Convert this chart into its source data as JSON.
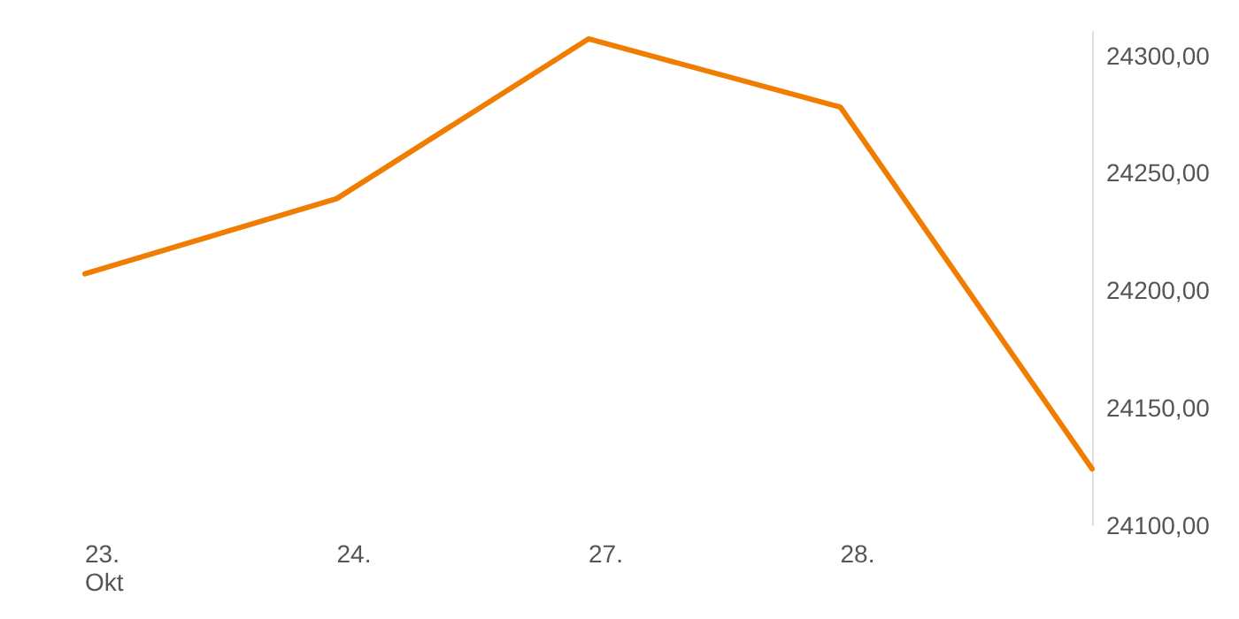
{
  "chart_data": {
    "type": "line",
    "categories": [
      "23.\nOkt",
      "24.",
      "27.",
      "28.",
      null
    ],
    "series": [
      {
        "color": "#f07d00",
        "values": [
          24207,
          24239,
          24307,
          24278,
          24124
        ]
      }
    ],
    "ylim": [
      24100,
      24310
    ],
    "yticks": [
      {
        "value": 24100,
        "label": "24100,00"
      },
      {
        "value": 24150,
        "label": "24150,00"
      },
      {
        "value": 24200,
        "label": "24200,00"
      },
      {
        "value": 24250,
        "label": "24250,00"
      },
      {
        "value": 24300,
        "label": "24300,00"
      }
    ],
    "grid": false,
    "marker": "none",
    "line_style": "solid"
  }
}
